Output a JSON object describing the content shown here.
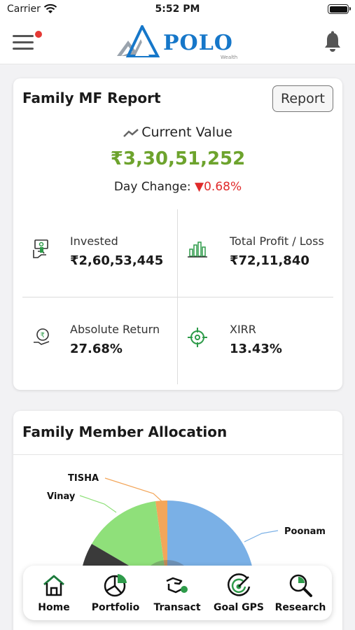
{
  "status_bar": {
    "carrier": "Carrier",
    "time": "5:52 PM"
  },
  "header": {
    "brand": "POLO",
    "brand_sub": "Wealth"
  },
  "summary_card": {
    "title": "Family MF Report",
    "report_button": "Report",
    "current_value_label": "Current Value",
    "current_value": "₹3,30,51,252",
    "day_change_label": "Day Change:",
    "day_change_value": "▼0.68%",
    "stats": {
      "invested": {
        "label": "Invested",
        "value": "₹2,60,53,445"
      },
      "total_profit_loss": {
        "label": "Total Profit / Loss",
        "value": "₹72,11,840"
      },
      "absolute_return": {
        "label": "Absolute Return",
        "value": "27.68%"
      },
      "xirr": {
        "label": "XIRR",
        "value": "13.43%"
      }
    }
  },
  "allocation_card": {
    "title": "Family Member Allocation",
    "labels": {
      "tisha": "TISHA",
      "vinay": "Vinay",
      "poonam": "Poonam"
    }
  },
  "tab_bar": {
    "home": "Home",
    "portfolio": "Portfolio",
    "transact": "Transact",
    "goal_gps": "Goal GPS",
    "research": "Research"
  },
  "colors": {
    "accent_green": "#6da32d",
    "negative_red": "#e02b2b",
    "brand_blue": "#1677c9",
    "icon_green": "#2e9b4a",
    "pie_blue": "#7ab0e6",
    "pie_green": "#8fe07a",
    "pie_orange": "#f3a65a",
    "pie_dark": "#3a3a3a"
  }
}
